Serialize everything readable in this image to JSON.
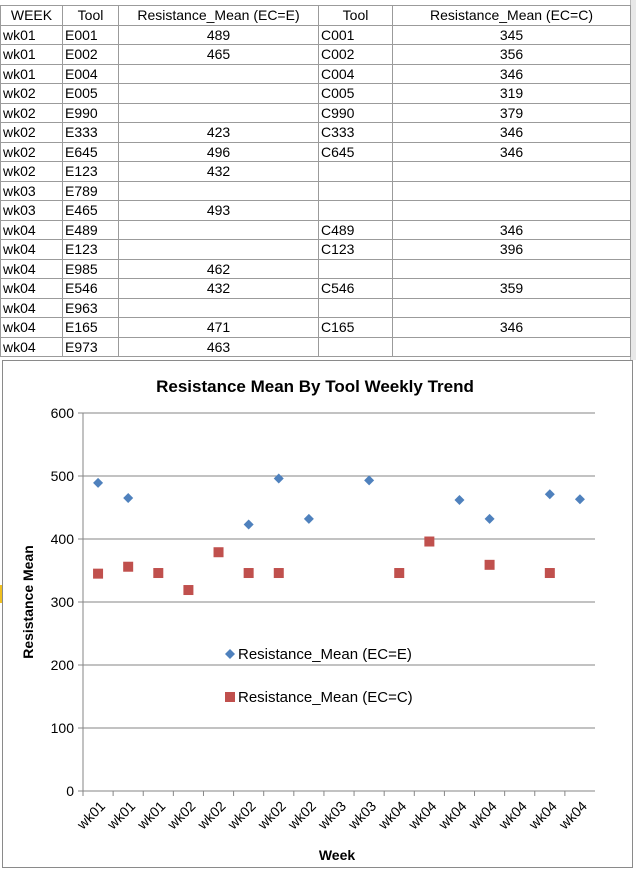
{
  "table": {
    "headers": [
      "WEEK",
      "Tool",
      "Resistance_Mean (EC=E)",
      "Tool",
      "Resistance_Mean (EC=C)"
    ],
    "rows": [
      [
        "wk01",
        "E001",
        "489",
        "C001",
        "345"
      ],
      [
        "wk01",
        "E002",
        "465",
        "C002",
        "356"
      ],
      [
        "wk01",
        "E004",
        "",
        "C004",
        "346"
      ],
      [
        "wk02",
        "E005",
        "",
        "C005",
        "319"
      ],
      [
        "wk02",
        "E990",
        "",
        "C990",
        "379"
      ],
      [
        "wk02",
        "E333",
        "423",
        "C333",
        "346"
      ],
      [
        "wk02",
        "E645",
        "496",
        "C645",
        "346"
      ],
      [
        "wk02",
        "E123",
        "432",
        "",
        ""
      ],
      [
        "wk03",
        "E789",
        "",
        "",
        ""
      ],
      [
        "wk03",
        "E465",
        "493",
        "",
        ""
      ],
      [
        "wk04",
        "E489",
        "",
        "C489",
        "346"
      ],
      [
        "wk04",
        "E123",
        "",
        "C123",
        "396"
      ],
      [
        "wk04",
        "E985",
        "462",
        "",
        ""
      ],
      [
        "wk04",
        "E546",
        "432",
        "C546",
        "359"
      ],
      [
        "wk04",
        "E963",
        "",
        "",
        ""
      ],
      [
        "wk04",
        "E165",
        "471",
        "C165",
        "346"
      ],
      [
        "wk04",
        "E973",
        "463",
        "",
        ""
      ]
    ]
  },
  "chart_data": {
    "type": "scatter",
    "title": "Resistance  Mean  By  Tool  Weekly  Trend",
    "xlabel": "Week",
    "ylabel": "Resistance Mean",
    "categories": [
      "wk01",
      "wk01",
      "wk01",
      "wk02",
      "wk02",
      "wk02",
      "wk02",
      "wk02",
      "wk03",
      "wk03",
      "wk04",
      "wk04",
      "wk04",
      "wk04",
      "wk04",
      "wk04",
      "wk04"
    ],
    "ylim": [
      0,
      600
    ],
    "yticks": [
      0,
      100,
      200,
      300,
      400,
      500,
      600
    ],
    "grid": true,
    "legend_position": "center",
    "series": [
      {
        "name": "Resistance_Mean (EC=E)",
        "marker": "diamond",
        "color": "#4f81bd",
        "values": [
          489,
          465,
          null,
          null,
          null,
          423,
          496,
          432,
          null,
          493,
          null,
          null,
          462,
          432,
          null,
          471,
          463
        ]
      },
      {
        "name": "Resistance_Mean (EC=C)",
        "marker": "square",
        "color": "#c0504d",
        "values": [
          345,
          356,
          346,
          319,
          379,
          346,
          346,
          null,
          null,
          null,
          346,
          396,
          null,
          359,
          null,
          346,
          null
        ]
      }
    ]
  }
}
